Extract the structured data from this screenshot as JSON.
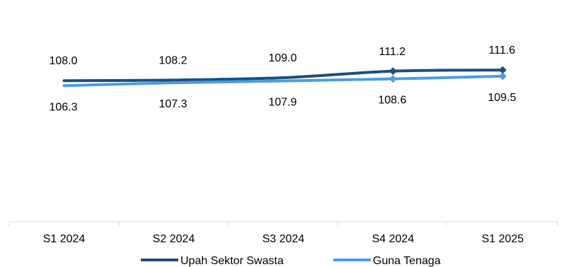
{
  "chart_data": {
    "type": "line",
    "title": "",
    "xlabel": "",
    "ylabel": "",
    "categories": [
      "S1 2024",
      "S2 2024",
      "S3 2024",
      "S4 2024",
      "S1 2025"
    ],
    "ylim": [
      105,
      112
    ],
    "grid": false,
    "legend_position": "bottom",
    "series": [
      {
        "name": "Upah Sektor Swasta",
        "color": "#1f4e79",
        "values": [
          108.0,
          108.2,
          109.0,
          111.2,
          111.6
        ],
        "labels": [
          "108.0",
          "108.2",
          "109.0",
          "111.2",
          "111.6"
        ],
        "label_position": "above",
        "markers": "diamond"
      },
      {
        "name": "Guna Tenaga",
        "color": "#4a9de6",
        "values": [
          106.3,
          107.3,
          107.9,
          108.6,
          109.5
        ],
        "labels": [
          "106.3",
          "107.3",
          "107.9",
          "108.6",
          "109.5"
        ],
        "label_position": "below",
        "markers": "diamond"
      }
    ]
  }
}
